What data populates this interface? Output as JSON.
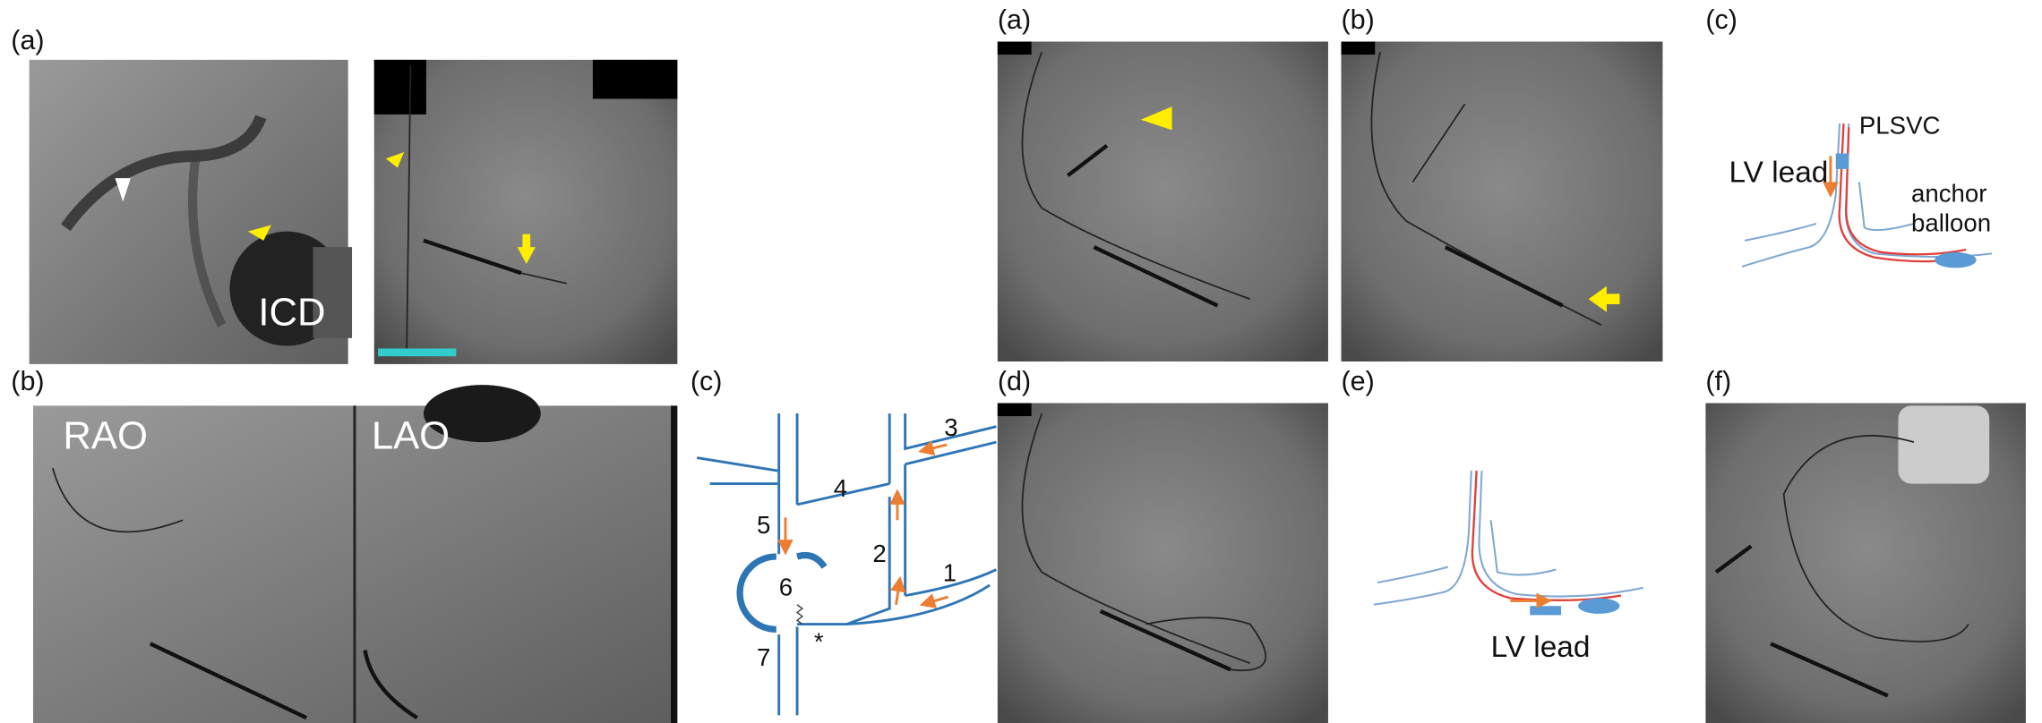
{
  "left_figure": {
    "panel_labels": [
      "(a)",
      "(b)",
      "(c)"
    ],
    "icd_label": "ICD",
    "view_labels": [
      "RAO",
      "LAO"
    ],
    "diagram_numbers": [
      "1",
      "2",
      "3",
      "4",
      "5",
      "6",
      "7"
    ],
    "asterisk": "*"
  },
  "right_figure": {
    "panel_labels": [
      "(a)",
      "(b)",
      "(c)",
      "(d)",
      "(e)",
      "(f)"
    ],
    "panel_c": {
      "plsvc": "PLSVC",
      "lead": "LV lead",
      "balloon": [
        "anchor",
        "balloon"
      ]
    },
    "panel_e": {
      "lead": "LV lead"
    }
  }
}
